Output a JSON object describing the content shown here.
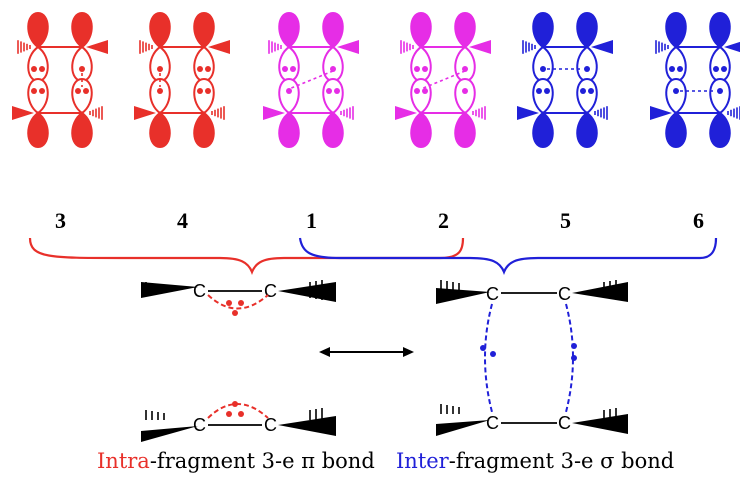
{
  "colors": {
    "red": "#e8302a",
    "magenta": "#e62de6",
    "blue": "#2020d8",
    "black": "#000000"
  },
  "diagrams": [
    {
      "label": "3",
      "color": "red",
      "dots": [
        2,
        1,
        2,
        2
      ],
      "bond": "pi-left"
    },
    {
      "label": "4",
      "color": "red",
      "dots": [
        1,
        2,
        1,
        2
      ],
      "bond": "pi-left"
    },
    {
      "label": "1",
      "color": "magenta",
      "dots": [
        2,
        1,
        1,
        2
      ],
      "bond": "diag-down"
    },
    {
      "label": "2",
      "color": "magenta",
      "dots": [
        2,
        1,
        2,
        1
      ],
      "bond": "diag-down"
    },
    {
      "label": "5",
      "color": "blue",
      "dots": [
        1,
        1,
        2,
        2
      ],
      "bond": "sigma-top"
    },
    {
      "label": "6",
      "color": "blue",
      "dots": [
        2,
        2,
        1,
        1
      ],
      "bond": "sigma-bottom"
    }
  ],
  "carbon_symbol": "C",
  "captions": {
    "left_highlight": "Intra",
    "left_rest": "-fragment 3-e π bond",
    "right_highlight": "Inter",
    "right_rest": "-fragment 3-e σ bond"
  }
}
